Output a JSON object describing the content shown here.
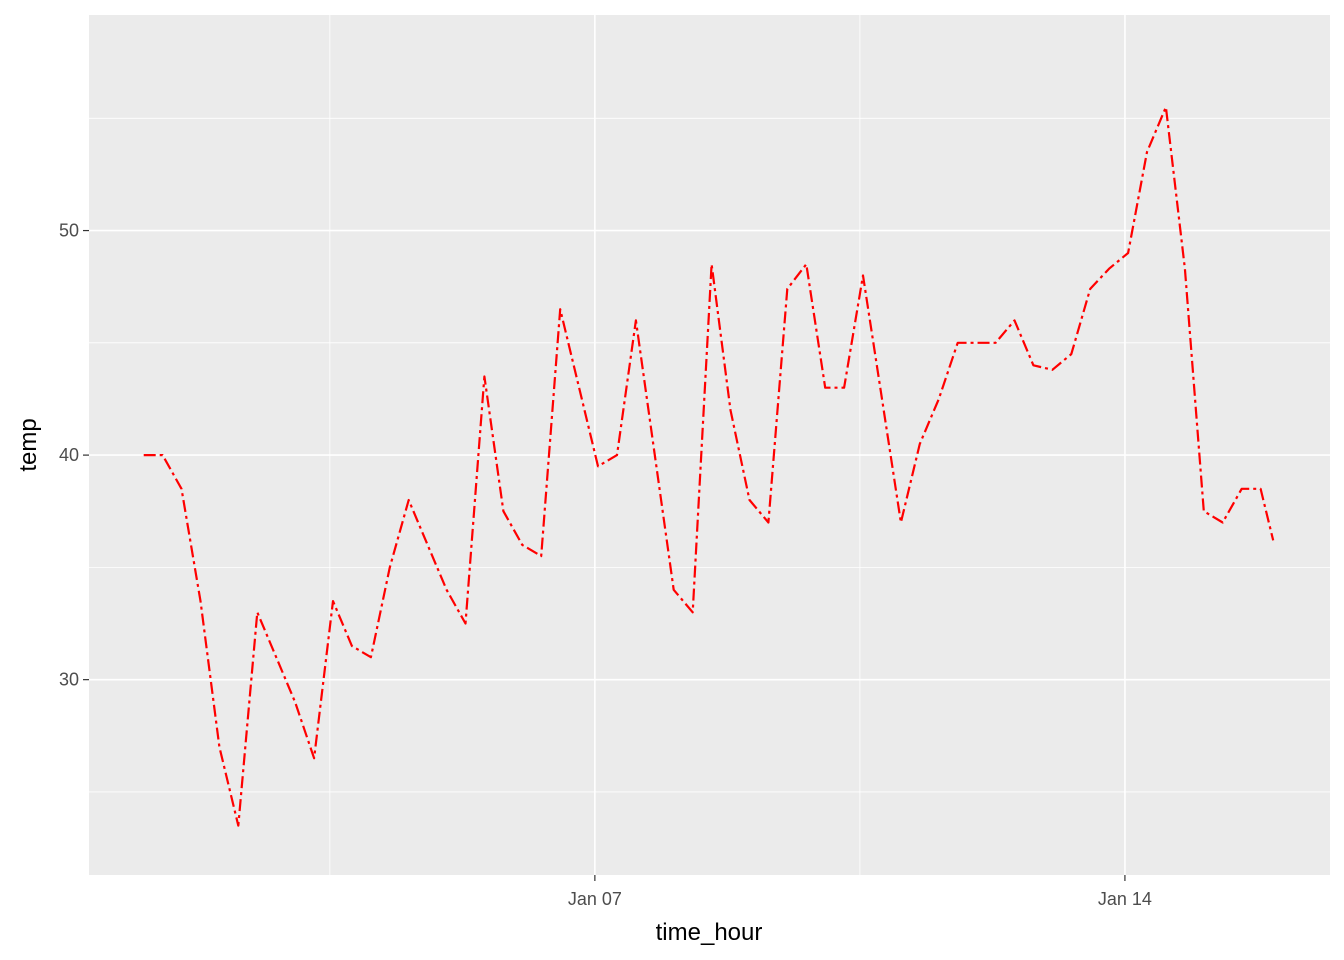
{
  "chart_data": {
    "type": "line",
    "title": "",
    "xlabel": "time_hour",
    "ylabel": "temp",
    "xlim": [
      "Dec 31 07:40",
      "Jan 16 17:00"
    ],
    "ylim": [
      21.3,
      59.6
    ],
    "grid": true,
    "line_color": "#FF0000",
    "line_style": "dot-dash",
    "panel_background": "#EBEBEB",
    "x_ticks": [
      {
        "value": "Jan 07 00:00",
        "label": "Jan 07"
      },
      {
        "value": "Jan 14 00:00",
        "label": "Jan 14"
      }
    ],
    "x_minor_ticks": [
      "Jan 03 12:00",
      "Jan 10 12:00"
    ],
    "y_ticks": [
      {
        "value": 30,
        "label": "30"
      },
      {
        "value": 40,
        "label": "40"
      },
      {
        "value": 50,
        "label": "50"
      }
    ],
    "y_minor_ticks": [
      25,
      35,
      45,
      55
    ],
    "series": [
      {
        "x": [
          "Jan 01 01:00",
          "Jan 01 07:00",
          "Jan 01 13:00",
          "Jan 01 19:00",
          "Jan 02 01:00",
          "Jan 02 07:00",
          "Jan 02 13:00",
          "Jan 02 19:00",
          "Jan 03 01:00",
          "Jan 03 07:00",
          "Jan 03 13:00",
          "Jan 03 19:00",
          "Jan 04 01:00",
          "Jan 04 07:00",
          "Jan 04 13:00",
          "Jan 04 19:00",
          "Jan 05 01:00",
          "Jan 05 07:00",
          "Jan 05 13:00",
          "Jan 05 19:00",
          "Jan 06 01:00",
          "Jan 06 07:00",
          "Jan 06 13:00",
          "Jan 06 19:00",
          "Jan 07 01:00",
          "Jan 07 07:00",
          "Jan 07 13:00",
          "Jan 07 19:00",
          "Jan 08 01:00",
          "Jan 08 07:00",
          "Jan 08 13:00",
          "Jan 08 19:00",
          "Jan 09 01:00",
          "Jan 09 07:00",
          "Jan 09 13:00",
          "Jan 09 19:00",
          "Jan 10 01:00",
          "Jan 10 07:00",
          "Jan 10 13:00",
          "Jan 10 19:00",
          "Jan 11 01:00",
          "Jan 11 07:00",
          "Jan 11 13:00",
          "Jan 11 19:00",
          "Jan 12 01:00",
          "Jan 12 07:00",
          "Jan 12 13:00",
          "Jan 12 19:00",
          "Jan 13 01:00",
          "Jan 13 07:00",
          "Jan 13 13:00",
          "Jan 13 19:00",
          "Jan 14 01:00",
          "Jan 14 07:00",
          "Jan 14 13:00",
          "Jan 14 19:00",
          "Jan 15 01:00",
          "Jan 15 07:00",
          "Jan 15 13:00",
          "Jan 15 19:00",
          "Jan 15 23:00"
        ],
        "values": [
          40,
          40,
          38.5,
          33.5,
          27,
          23.5,
          33,
          31,
          29,
          26.5,
          33.5,
          31.5,
          31,
          35,
          38,
          36,
          34,
          32.5,
          43.5,
          37.5,
          36,
          35.5,
          46.5,
          43,
          39.5,
          40,
          46,
          40,
          34,
          33,
          48.5,
          42,
          38,
          37,
          47.4,
          48.5,
          43,
          43,
          48,
          42.5,
          37,
          40.5,
          42.5,
          45,
          45,
          45,
          46,
          44,
          43.8,
          44.5,
          47.4,
          48.3,
          49,
          53.5,
          55.5,
          48.3,
          37.5,
          37,
          38.5,
          38.5,
          36.2
        ]
      }
    ]
  }
}
